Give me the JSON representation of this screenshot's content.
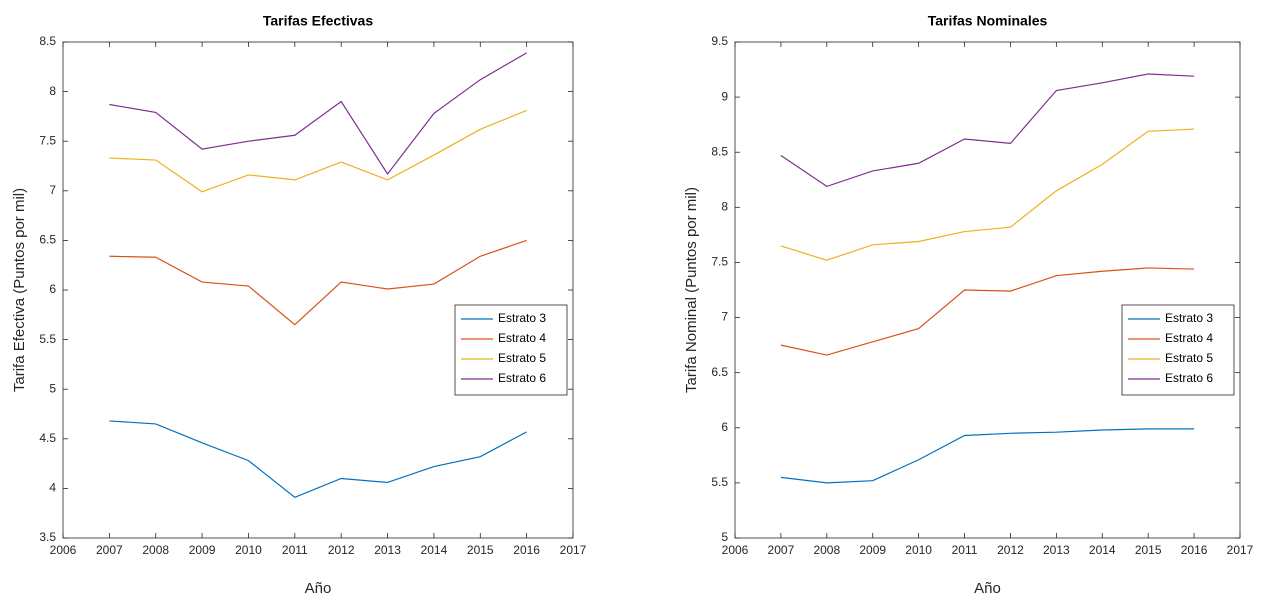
{
  "chart_data": [
    {
      "type": "line",
      "title": "Tarifas Efectivas",
      "xlabel": "Año",
      "ylabel": "Tarifa Efectiva (Puntos por mil)",
      "x": [
        2007,
        2008,
        2009,
        2010,
        2011,
        2012,
        2013,
        2014,
        2015,
        2016
      ],
      "xlim": [
        2006,
        2017
      ],
      "xticks": [
        2006,
        2007,
        2008,
        2009,
        2010,
        2011,
        2012,
        2013,
        2014,
        2015,
        2016,
        2017
      ],
      "ylim": [
        3.5,
        8.5
      ],
      "yticks": [
        3.5,
        4,
        4.5,
        5,
        5.5,
        6,
        6.5,
        7,
        7.5,
        8,
        8.5
      ],
      "legend": "east",
      "series": [
        {
          "name": "Estrato 3",
          "color": "#0072BD",
          "values": [
            4.68,
            4.65,
            4.46,
            4.28,
            3.91,
            4.1,
            4.06,
            4.22,
            4.32,
            4.57
          ]
        },
        {
          "name": "Estrato 4",
          "color": "#D95319",
          "values": [
            6.34,
            6.33,
            6.08,
            6.04,
            5.65,
            6.08,
            6.01,
            6.06,
            6.34,
            6.5
          ]
        },
        {
          "name": "Estrato 5",
          "color": "#EDB120",
          "values": [
            7.33,
            7.31,
            6.99,
            7.16,
            7.11,
            7.29,
            7.11,
            7.36,
            7.62,
            7.81
          ]
        },
        {
          "name": "Estrato 6",
          "color": "#7E2F8E",
          "values": [
            7.87,
            7.79,
            7.42,
            7.5,
            7.56,
            7.9,
            7.17,
            7.78,
            8.12,
            8.39
          ]
        }
      ]
    },
    {
      "type": "line",
      "title": "Tarifas Nominales",
      "xlabel": "Año",
      "ylabel": "Tarifa Nominal (Puntos por mil)",
      "x": [
        2007,
        2008,
        2009,
        2010,
        2011,
        2012,
        2013,
        2014,
        2015,
        2016
      ],
      "xlim": [
        2006,
        2017
      ],
      "xticks": [
        2006,
        2007,
        2008,
        2009,
        2010,
        2011,
        2012,
        2013,
        2014,
        2015,
        2016,
        2017
      ],
      "ylim": [
        5,
        9.5
      ],
      "yticks": [
        5,
        5.5,
        6,
        6.5,
        7,
        7.5,
        8,
        8.5,
        9,
        9.5
      ],
      "legend": "east",
      "series": [
        {
          "name": "Estrato 3",
          "color": "#0072BD",
          "values": [
            5.55,
            5.5,
            5.52,
            5.71,
            5.93,
            5.95,
            5.96,
            5.98,
            5.99,
            5.99
          ]
        },
        {
          "name": "Estrato 4",
          "color": "#D95319",
          "values": [
            6.75,
            6.66,
            6.78,
            6.9,
            7.25,
            7.24,
            7.38,
            7.42,
            7.45,
            7.44
          ]
        },
        {
          "name": "Estrato 5",
          "color": "#EDB120",
          "values": [
            7.65,
            7.52,
            7.66,
            7.69,
            7.78,
            7.82,
            8.15,
            8.39,
            8.69,
            8.71
          ]
        },
        {
          "name": "Estrato 6",
          "color": "#7E2F8E",
          "values": [
            8.47,
            8.19,
            8.33,
            8.4,
            8.62,
            8.58,
            9.06,
            9.13,
            9.21,
            9.19
          ]
        }
      ]
    }
  ]
}
